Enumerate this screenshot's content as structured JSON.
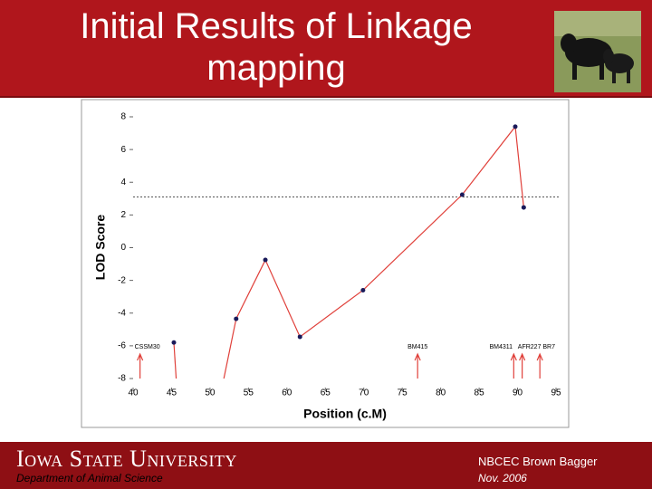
{
  "header": {
    "title": "Initial Results of Linkage mapping"
  },
  "chart_data": {
    "type": "line",
    "x_label": "Position (c.M)",
    "y_label": "LOD Score",
    "xlim": [
      40,
      95
    ],
    "xticks": [
      40,
      45,
      50,
      55,
      60,
      65,
      70,
      75,
      80,
      85,
      90,
      95
    ],
    "ylim": [
      -8,
      8
    ],
    "yticks": [
      -8,
      -6,
      -4,
      -2,
      0,
      2,
      4,
      6,
      8
    ],
    "series": [
      {
        "color": "#e0403a",
        "x": [
          45.3,
          45.6,
          48,
          51.8,
          53.4,
          57.2,
          61.7,
          69.9,
          82.8,
          89.7,
          90.8
        ],
        "values": [
          -5.8,
          -8,
          null,
          -8,
          -4.35,
          -0.75,
          -5.45,
          -2.6,
          3.24,
          7.4,
          2.46
        ]
      }
    ],
    "threshold": 3.1,
    "markers": [
      {
        "label": "CSSM30",
        "x": 40.9
      },
      {
        "label": "BM415",
        "x": 77
      },
      {
        "label": "BM4311",
        "x": 89.5
      },
      {
        "label": "AFR227",
        "x": 90.6
      },
      {
        "label": "BR7",
        "x": 92.9
      }
    ]
  },
  "footer": {
    "university": "Iowa State University",
    "department": "Department of Animal Science",
    "event": "NBCEC Brown Bagger",
    "date": "Nov. 2006"
  }
}
